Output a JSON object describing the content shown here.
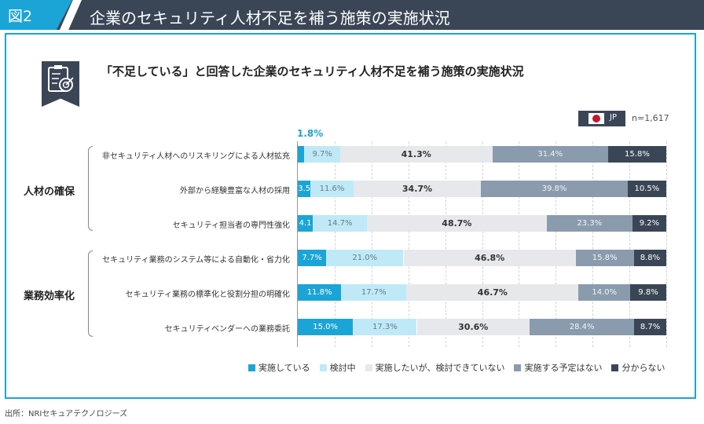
{
  "header": {
    "figure_label": "図2",
    "title": "企業のセキュリティ人材不足を補う施策の実施状況"
  },
  "chart_title": "「不足している」と回答した企業のセキュリティ人材不足を補う施策の実施状況",
  "country_label": "JP",
  "sample_size": "n=1,617",
  "first_value_callout": "1.8%",
  "groups": [
    "人材の確保",
    "業務効率化"
  ],
  "legend": [
    "実施している",
    "検討中",
    "実施したいが、検討できていない",
    "実施する予定はない",
    "分からない"
  ],
  "colors": {
    "brand": "#1ba5d7",
    "dark": "#3a4656",
    "series": [
      "#1ba5d7",
      "#bfe9f7",
      "#e6e8eb",
      "#8a9bad",
      "#3a4656"
    ],
    "label_text": [
      "#ffffff",
      "#6a7a88",
      "#333333",
      "#f2f4f6",
      "#ffffff"
    ]
  },
  "chart_data": {
    "type": "bar",
    "orientation": "horizontal",
    "stacked": true,
    "title": "「不足している」と回答した企業のセキュリティ人材不足を補う施策の実施状況",
    "xlim": [
      0,
      100
    ],
    "categories": [
      "非セキュリティ人材へのリスキリングによる人材拡充",
      "外部から経験豊富な人材の採用",
      "セキュリティ担当者の専門性強化",
      "セキュリティ業務のシステム等による自動化・省力化",
      "セキュリティ業務の標準化と役割分担の明確化",
      "セキュリティベンダーへの業務委託"
    ],
    "series": [
      {
        "name": "実施している",
        "values": [
          1.8,
          3.5,
          4.1,
          7.7,
          11.8,
          15.0
        ],
        "labels": [
          "",
          "3.5",
          "4.1",
          "7.7%",
          "11.8%",
          "15.0%"
        ]
      },
      {
        "name": "検討中",
        "values": [
          9.7,
          11.6,
          14.7,
          21.0,
          17.7,
          17.3
        ],
        "labels": [
          "9.7%",
          "11.6%",
          "14.7%",
          "21.0%",
          "17.7%",
          "17.3%"
        ]
      },
      {
        "name": "実施したいが、検討できていない",
        "values": [
          41.3,
          34.7,
          48.7,
          46.8,
          46.7,
          30.6
        ],
        "labels": [
          "41.3%",
          "34.7%",
          "48.7%",
          "46.8%",
          "46.7%",
          "30.6%"
        ]
      },
      {
        "name": "実施する予定はない",
        "values": [
          31.4,
          39.8,
          23.3,
          15.8,
          14.0,
          28.4
        ],
        "labels": [
          "31.4%",
          "39.8%",
          "23.3%",
          "15.8%",
          "14.0%",
          "28.4%"
        ]
      },
      {
        "name": "分からない",
        "values": [
          15.8,
          10.5,
          9.2,
          8.8,
          9.8,
          8.7
        ],
        "labels": [
          "15.8%",
          "10.5%",
          "9.2%",
          "8.8%",
          "9.8%",
          "8.7%"
        ]
      }
    ]
  },
  "source": "出所：NRIセキュアテクノロジーズ"
}
